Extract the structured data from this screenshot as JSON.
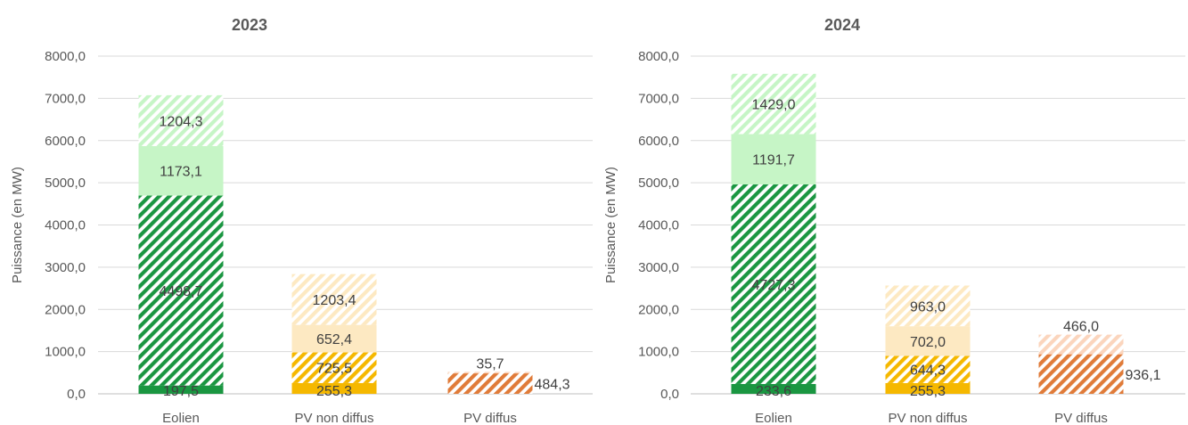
{
  "chart_data": [
    {
      "type": "bar",
      "stacked": true,
      "title": "2023",
      "ylabel": "Puissance (en MW)",
      "ylim": [
        0,
        8000
      ],
      "yticks": [
        "0,0",
        "1000,0",
        "2000,0",
        "3000,0",
        "4000,0",
        "5000,0",
        "6000,0",
        "7000,0",
        "8000,0"
      ],
      "categories": [
        "Eolien",
        "PV non diffus",
        "PV diffus"
      ],
      "grid": true,
      "bars": [
        {
          "category": "Eolien",
          "segments": [
            {
              "value": 197.5,
              "label": "197,5",
              "color": "#1a9641",
              "pattern": "solid"
            },
            {
              "value": 4498.7,
              "label": "4498,7",
              "color": "#1a9641",
              "pattern": "hatch"
            },
            {
              "value": 1173.1,
              "label": "1173,1",
              "color": "#c6f5c6",
              "pattern": "solid"
            },
            {
              "value": 1204.3,
              "label": "1204,3",
              "color": "#c6f5c6",
              "pattern": "hatch"
            }
          ]
        },
        {
          "category": "PV non diffus",
          "segments": [
            {
              "value": 255.3,
              "label": "255,3",
              "color": "#f5b800",
              "pattern": "solid"
            },
            {
              "value": 725.5,
              "label": "725,5",
              "color": "#f5b800",
              "pattern": "hatch"
            },
            {
              "value": 652.4,
              "label": "652,4",
              "color": "#fde9c2",
              "pattern": "solid"
            },
            {
              "value": 1203.4,
              "label": "1203,4",
              "color": "#fde9c2",
              "pattern": "hatch"
            }
          ]
        },
        {
          "category": "PV diffus",
          "segments": [
            {
              "value": 484.3,
              "label": "484,3",
              "color": "#e07b39",
              "pattern": "hatch"
            },
            {
              "value": 35.7,
              "label": "35,7",
              "color": "#fbd5bd",
              "pattern": "hatch"
            }
          ]
        }
      ]
    },
    {
      "type": "bar",
      "stacked": true,
      "title": "2024",
      "ylabel": "Puissance (en MW)",
      "ylim": [
        0,
        8000
      ],
      "yticks": [
        "0,0",
        "1000,0",
        "2000,0",
        "3000,0",
        "4000,0",
        "5000,0",
        "6000,0",
        "7000,0",
        "8000,0"
      ],
      "categories": [
        "Eolien",
        "PV non diffus",
        "PV diffus"
      ],
      "grid": true,
      "bars": [
        {
          "category": "Eolien",
          "segments": [
            {
              "value": 233.6,
              "label": "233,6",
              "color": "#1a9641",
              "pattern": "solid"
            },
            {
              "value": 4727.3,
              "label": "4727,3",
              "color": "#1a9641",
              "pattern": "hatch"
            },
            {
              "value": 1191.7,
              "label": "1191,7",
              "color": "#c6f5c6",
              "pattern": "solid"
            },
            {
              "value": 1429.0,
              "label": "1429,0",
              "color": "#c6f5c6",
              "pattern": "hatch"
            }
          ]
        },
        {
          "category": "PV non diffus",
          "segments": [
            {
              "value": 255.3,
              "label": "255,3",
              "color": "#f5b800",
              "pattern": "solid"
            },
            {
              "value": 644.3,
              "label": "644,3",
              "color": "#f5b800",
              "pattern": "hatch"
            },
            {
              "value": 702.0,
              "label": "702,0",
              "color": "#fde9c2",
              "pattern": "solid"
            },
            {
              "value": 963.0,
              "label": "963,0",
              "color": "#fde9c2",
              "pattern": "hatch"
            }
          ]
        },
        {
          "category": "PV diffus",
          "segments": [
            {
              "value": 936.1,
              "label": "936,1",
              "color": "#e07b39",
              "pattern": "hatch"
            },
            {
              "value": 466.0,
              "label": "466,0",
              "color": "#fbd5bd",
              "pattern": "hatch"
            }
          ]
        }
      ]
    }
  ]
}
